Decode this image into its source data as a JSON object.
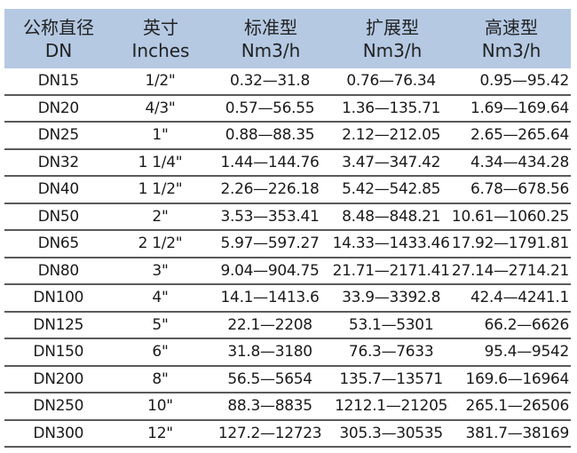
{
  "headers": [
    {
      "cn": "公称直径",
      "en": "DN"
    },
    {
      "cn": "英寸",
      "en": "Inches"
    },
    {
      "cn": "标准型",
      "en": "Nm3/h"
    },
    {
      "cn": "扩展型",
      "en": "Nm3/h"
    },
    {
      "cn": "高速型",
      "en": "Nm3/h"
    }
  ],
  "rows": [
    [
      "DN15",
      "1/2\"",
      "0.32—31.8",
      "0.76—76.34",
      "0.95—95.42"
    ],
    [
      "DN20",
      "4/3\"",
      "0.57—56.55",
      "1.36—135.71",
      "1.69—169.64"
    ],
    [
      "DN25",
      "1\"",
      "0.88—88.35",
      "2.12—212.05",
      "2.65—265.64"
    ],
    [
      "DN32",
      "1 1/4\"",
      "1.44—144.76",
      "3.47—347.42",
      "4.34—434.28"
    ],
    [
      "DN40",
      "1 1/2\"",
      "2.26—226.18",
      "5.42—542.85",
      "6.78—678.56"
    ],
    [
      "DN50",
      "2\"",
      "3.53—353.41",
      "8.48—848.21",
      "10.61—1060.25"
    ],
    [
      "DN65",
      "2 1/2\"",
      "5.97—597.27",
      "14.33—1433.46",
      "17.92—1791.81"
    ],
    [
      "DN80",
      "3\"",
      "9.04—904.75",
      "21.71—2171.41",
      "27.14—2714.21"
    ],
    [
      "DN100",
      "4\"",
      "14.1—1413.6",
      "33.9—3392.8",
      "42.4—4241.1"
    ],
    [
      "DN125",
      "5\"",
      "22.1—2208",
      "53.1—5301",
      "66.2—6626"
    ],
    [
      "DN150",
      "6\"",
      "31.8—3180",
      "76.3—7633",
      "95.4—9542"
    ],
    [
      "DN200",
      "8\"",
      "56.5—5654",
      "135.7—13571",
      "169.6—16964"
    ],
    [
      "DN250",
      "10\"",
      "88.3—8835",
      "1212.1—21205",
      "265.1—26506"
    ],
    [
      "DN300",
      "12\"",
      "127.2—12723",
      "305.3—30535",
      "381.7—38169"
    ]
  ]
}
